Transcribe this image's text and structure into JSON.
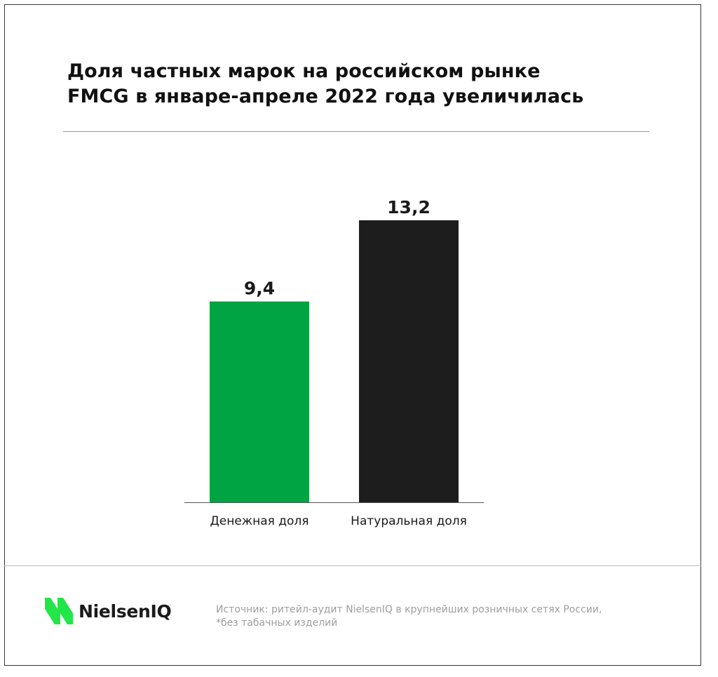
{
  "header": {
    "title_line_1": "Доля частных марок на российском рынке",
    "title_line_2": "FMCG в январе-апреле 2022 года увеличилась"
  },
  "chart_data": {
    "type": "bar",
    "categories": [
      "Денежная доля",
      "Натуральная доля"
    ],
    "values": [
      9.4,
      13.2
    ],
    "value_labels": [
      "9,4",
      "13,2"
    ],
    "bar_colors": [
      "#00a443",
      "#1d1d1d"
    ],
    "title": "Доля частных марок на российском рынке FMCG в январе-апреле 2022 года увеличилась",
    "ylim": [
      0,
      13.2
    ],
    "grid": false
  },
  "footer": {
    "brand": "NielsenIQ",
    "brand_color": "#22e548",
    "logo_icon": "nielseniq-logo-icon",
    "source_line_1": "Источник: ритейл-аудит NielsenIQ в крупнейших розничных сетях России,",
    "source_line_2": "*без табачных изделий"
  }
}
